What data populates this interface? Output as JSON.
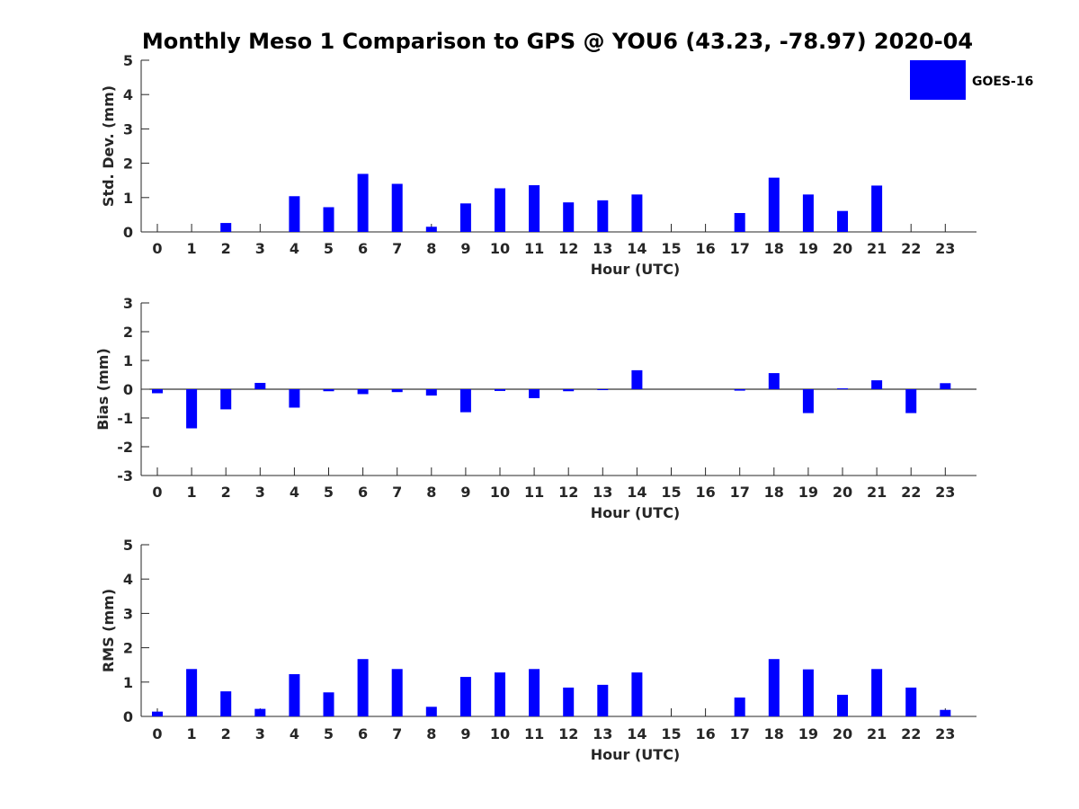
{
  "title": "Monthly Meso 1 Comparison to GPS @ YOU6 (43.23, -78.97) 2020-04",
  "legend": {
    "label": "GOES-16",
    "color": "#0000ff",
    "position": "top-right"
  },
  "colors": {
    "bar": "#0000ff",
    "axis": "#262626"
  },
  "chart_data": [
    {
      "type": "bar",
      "xlabel": "Hour (UTC)",
      "ylabel": "Std. Dev. (mm)",
      "ylim": [
        0,
        5
      ],
      "yticks": [
        0,
        1,
        2,
        3,
        4,
        5
      ],
      "categories": [
        "0",
        "1",
        "2",
        "3",
        "4",
        "5",
        "6",
        "7",
        "8",
        "9",
        "10",
        "11",
        "12",
        "13",
        "14",
        "15",
        "16",
        "17",
        "18",
        "19",
        "20",
        "21",
        "22",
        "23"
      ],
      "series": [
        {
          "name": "GOES-16",
          "values": [
            null,
            null,
            0.26,
            null,
            1.04,
            0.72,
            1.69,
            1.4,
            0.15,
            0.83,
            1.27,
            1.36,
            0.86,
            0.92,
            1.09,
            null,
            null,
            0.55,
            1.58,
            1.09,
            0.61,
            1.35,
            null,
            null
          ]
        }
      ]
    },
    {
      "type": "bar",
      "xlabel": "Hour (UTC)",
      "ylabel": "Bias (mm)",
      "ylim": [
        -3,
        3
      ],
      "yticks": [
        -3,
        -2,
        -1,
        0,
        1,
        2,
        3
      ],
      "categories": [
        "0",
        "1",
        "2",
        "3",
        "4",
        "5",
        "6",
        "7",
        "8",
        "9",
        "10",
        "11",
        "12",
        "13",
        "14",
        "15",
        "16",
        "17",
        "18",
        "19",
        "20",
        "21",
        "22",
        "23"
      ],
      "series": [
        {
          "name": "GOES-16",
          "values": [
            -0.14,
            -1.36,
            -0.7,
            0.22,
            -0.64,
            -0.07,
            -0.17,
            -0.1,
            -0.22,
            -0.8,
            -0.06,
            -0.31,
            -0.07,
            -0.02,
            0.66,
            null,
            null,
            -0.05,
            0.56,
            -0.83,
            0.03,
            0.31,
            -0.83,
            0.21
          ]
        }
      ]
    },
    {
      "type": "bar",
      "xlabel": "Hour (UTC)",
      "ylabel": "RMS (mm)",
      "ylim": [
        0,
        5
      ],
      "yticks": [
        0,
        1,
        2,
        3,
        4,
        5
      ],
      "categories": [
        "0",
        "1",
        "2",
        "3",
        "4",
        "5",
        "6",
        "7",
        "8",
        "9",
        "10",
        "11",
        "12",
        "13",
        "14",
        "15",
        "16",
        "17",
        "18",
        "19",
        "20",
        "21",
        "22",
        "23"
      ],
      "series": [
        {
          "name": "GOES-16",
          "values": [
            0.14,
            1.38,
            0.73,
            0.22,
            1.23,
            0.7,
            1.67,
            1.38,
            0.28,
            1.15,
            1.28,
            1.38,
            0.84,
            0.92,
            1.28,
            null,
            null,
            0.55,
            1.67,
            1.37,
            0.63,
            1.38,
            0.84,
            0.19
          ]
        }
      ]
    }
  ]
}
